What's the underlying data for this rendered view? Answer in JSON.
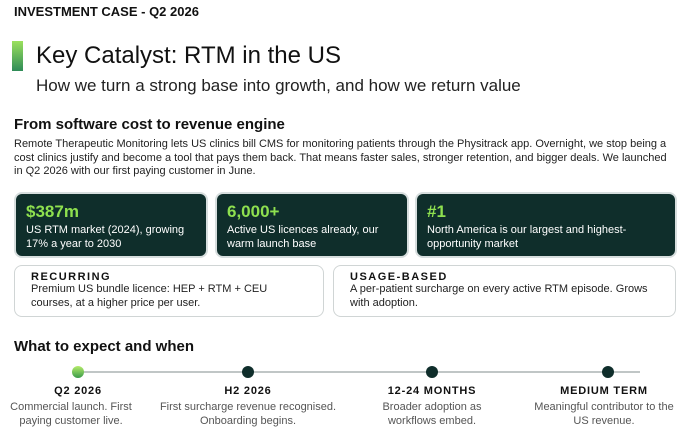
{
  "header": {
    "label": "INVESTMENT CASE - Q2 2026",
    "title": "Key Catalyst: RTM in the US",
    "subtitle": "How we turn a strong base into growth, and how we return value"
  },
  "section": {
    "heading": "From software cost to revenue engine",
    "body": "Remote Therapeutic Monitoring lets US clinics bill CMS for monitoring patients through the Physitrack app. Overnight, we stop being a cost clinics justify and become a tool that pays them back. That means faster sales, stronger retention, and bigger deals. We launched in Q2 2026 with our first paying customer in June."
  },
  "stats": [
    {
      "value": "$387m",
      "text": "US RTM market (2024), growing 17% a year to 2030"
    },
    {
      "value": "6,000+",
      "text": "Active US licences already, our warm launch base"
    },
    {
      "value": "#1",
      "text": "North America is our largest and highest-opportunity market"
    }
  ],
  "models": [
    {
      "label": "RECURRING",
      "text": "Premium US bundle licence: HEP + RTM + CEU courses, at a higher price per user."
    },
    {
      "label": "USAGE-BASED",
      "text": "A per-patient surcharge on every active RTM episode. Grows with adoption."
    }
  ],
  "timeline": {
    "heading": "What to expect and when",
    "milestones": [
      {
        "label": "Q2 2026",
        "text": "Commercial launch. First paying customer live."
      },
      {
        "label": "H2 2026",
        "text": "First surcharge revenue recognised. Onboarding begins."
      },
      {
        "label": "12-24 MONTHS",
        "text": "Broader adoption as workflows embed."
      },
      {
        "label": "MEDIUM TERM",
        "text": "Meaningful contributor to the US revenue."
      }
    ]
  }
}
